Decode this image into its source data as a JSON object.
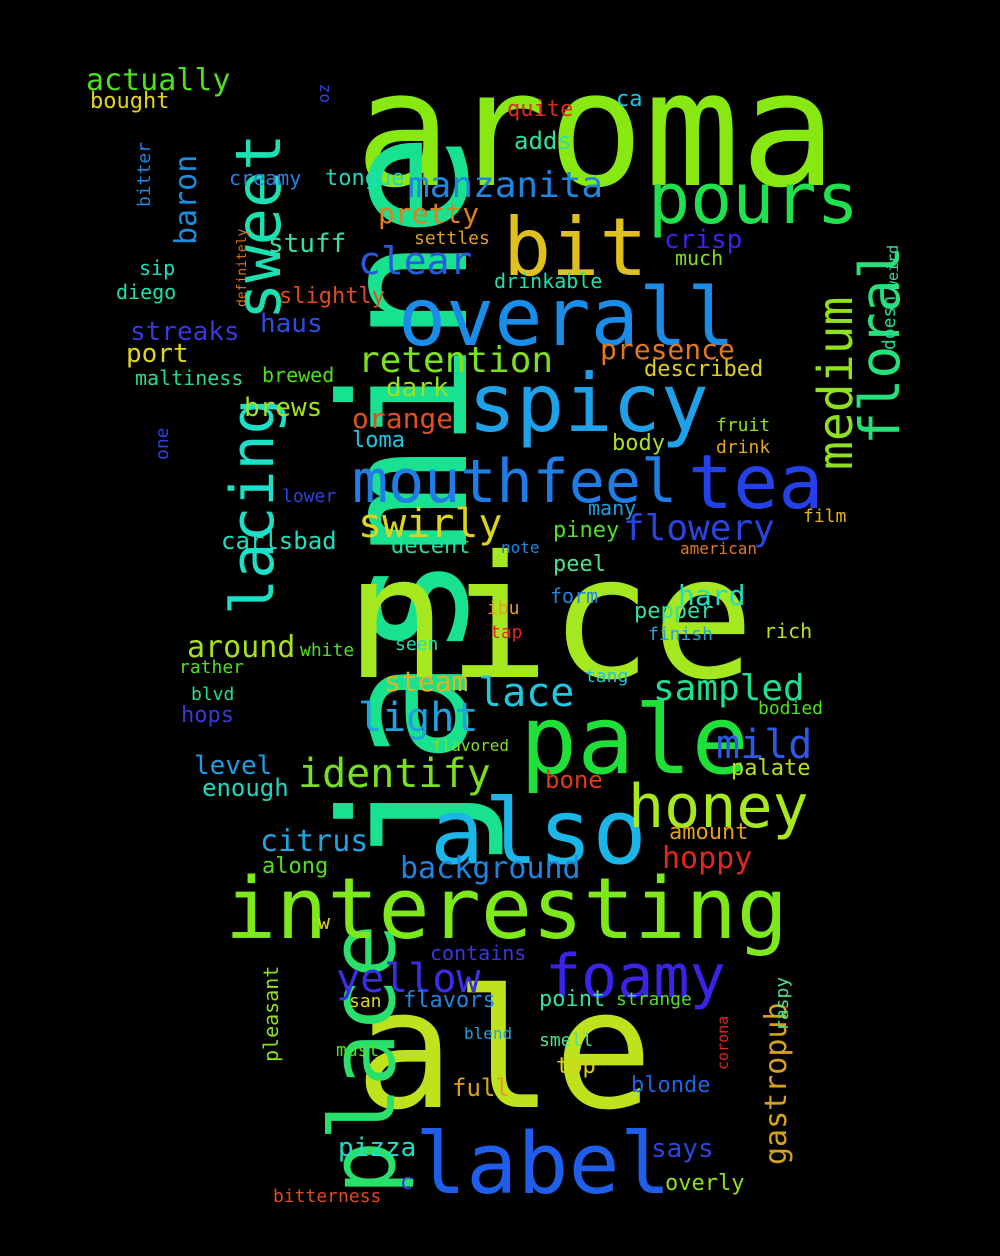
{
  "words": [
    {
      "text": "aroma",
      "color": "#88e812",
      "weight": 1.0
    },
    {
      "text": "jasmine",
      "color": "#18e28f",
      "weight": 0.98
    },
    {
      "text": "nice",
      "color": "#a6e81f",
      "weight": 0.95
    },
    {
      "text": "ale",
      "color": "#bee31c",
      "weight": 0.95
    },
    {
      "text": "pale",
      "color": "#1fe039",
      "weight": 0.6
    },
    {
      "text": "also",
      "color": "#1cb5e8",
      "weight": 0.55
    },
    {
      "text": "label",
      "color": "#1e5ee8",
      "weight": 0.55
    },
    {
      "text": "place",
      "color": "#28e06a",
      "weight": 0.55
    },
    {
      "text": "interesting",
      "color": "#7de81c",
      "weight": 0.5
    },
    {
      "text": "overall",
      "color": "#1a8de8",
      "weight": 0.5
    },
    {
      "text": "spicy",
      "color": "#1ea1e8",
      "weight": 0.5
    },
    {
      "text": "bit",
      "color": "#e0c01c",
      "weight": 0.45
    },
    {
      "text": "pours",
      "color": "#21e04e",
      "weight": 0.45
    },
    {
      "text": "sweet",
      "color": "#1ce0b0",
      "weight": 0.45
    },
    {
      "text": "lacing",
      "color": "#1ce0c7",
      "weight": 0.45
    },
    {
      "text": "tea",
      "color": "#2440e8",
      "weight": 0.45
    },
    {
      "text": "mouthfeel",
      "color": "#1f7ee6",
      "weight": 0.4
    },
    {
      "text": "honey",
      "color": "#a8e81f",
      "weight": 0.38
    },
    {
      "text": "foamy",
      "color": "#3b24e8",
      "weight": 0.38
    },
    {
      "text": "floral",
      "color": "#26e07a",
      "weight": 0.38
    },
    {
      "text": "medium",
      "color": "#8ee020",
      "weight": 0.35
    },
    {
      "text": "manzanita",
      "color": "#1e86e0",
      "weight": 0.25
    },
    {
      "text": "clear",
      "color": "#245ce0",
      "weight": 0.25
    },
    {
      "text": "retention",
      "color": "#7de01c",
      "weight": 0.25
    },
    {
      "text": "swirly",
      "color": "#dcd51c",
      "weight": 0.25
    },
    {
      "text": "flowery",
      "color": "#2a44e0",
      "weight": 0.25
    },
    {
      "text": "light",
      "color": "#1fa3e0",
      "weight": 0.28
    },
    {
      "text": "lace",
      "color": "#1fc9e0",
      "weight": 0.28
    },
    {
      "text": "identify",
      "color": "#78e01e",
      "weight": 0.28
    },
    {
      "text": "mild",
      "color": "#2c5ae6",
      "weight": 0.28
    },
    {
      "text": "yellow",
      "color": "#3b2ee8",
      "weight": 0.28
    },
    {
      "text": "sampled",
      "color": "#1ee08e",
      "weight": 0.25
    },
    {
      "text": "gastropub",
      "color": "#d6a21e",
      "weight": 0.25
    },
    {
      "text": "baron",
      "color": "#1a8fe0",
      "weight": 0.22
    },
    {
      "text": "actually",
      "color": "#4ee01c",
      "weight": 0.2
    },
    {
      "text": "pretty",
      "color": "#e07d1f",
      "weight": 0.2
    },
    {
      "text": "stuff",
      "color": "#34e0a8",
      "weight": 0.18
    },
    {
      "text": "crisp",
      "color": "#3b24e8",
      "weight": 0.18
    },
    {
      "text": "presence",
      "color": "#e0781e",
      "weight": 0.18
    },
    {
      "text": "dark",
      "color": "#9be01e",
      "weight": 0.18
    },
    {
      "text": "orange",
      "color": "#e04f1e",
      "weight": 0.18
    },
    {
      "text": "streaks",
      "color": "#3b36e0",
      "weight": 0.18
    },
    {
      "text": "port",
      "color": "#e0d51e",
      "weight": 0.18
    },
    {
      "text": "haus",
      "color": "#2c4ee0",
      "weight": 0.18
    },
    {
      "text": "brews",
      "color": "#a3e01e",
      "weight": 0.18
    },
    {
      "text": "carlsbad",
      "color": "#1ee0c0",
      "weight": 0.18
    },
    {
      "text": "around",
      "color": "#a8e01e",
      "weight": 0.22
    },
    {
      "text": "steam",
      "color": "#e0b41e",
      "weight": 0.18
    },
    {
      "text": "hard",
      "color": "#1ee0c0",
      "weight": 0.18
    },
    {
      "text": "citrus",
      "color": "#1ea5e0",
      "weight": 0.2
    },
    {
      "text": "background",
      "color": "#1e86e0",
      "weight": 0.2
    },
    {
      "text": "hoppy",
      "color": "#e0281e",
      "weight": 0.2
    },
    {
      "text": "pizza",
      "color": "#1ee0c7",
      "weight": 0.18
    },
    {
      "text": "level",
      "color": "#1e9ee0",
      "weight": 0.18
    },
    {
      "text": "enough",
      "color": "#1ed8c0",
      "weight": 0.16
    },
    {
      "text": "amount",
      "color": "#e0a01e",
      "weight": 0.15
    },
    {
      "text": "palate",
      "color": "#b5e01e",
      "weight": 0.14
    },
    {
      "text": "body",
      "color": "#a8e01e",
      "weight": 0.15
    },
    {
      "text": "peel",
      "color": "#4ee08a",
      "weight": 0.15
    },
    {
      "text": "pepper",
      "color": "#34e09f",
      "weight": 0.15
    },
    {
      "text": "bone",
      "color": "#e0391e",
      "weight": 0.15
    },
    {
      "text": "described",
      "color": "#e0d01e",
      "weight": 0.14
    },
    {
      "text": "loma",
      "color": "#1ec6e0",
      "weight": 0.14
    },
    {
      "text": "many",
      "color": "#1e9ee0",
      "weight": 0.13
    },
    {
      "text": "piney",
      "color": "#4ee02a",
      "weight": 0.14
    },
    {
      "text": "decent",
      "color": "#1ee0a0",
      "weight": 0.15
    },
    {
      "text": "adds",
      "color": "#34e09a",
      "weight": 0.15
    },
    {
      "text": "tongue",
      "color": "#1ed8c0",
      "weight": 0.14
    },
    {
      "text": "quite",
      "color": "#e0281e",
      "weight": 0.14
    },
    {
      "text": "ca",
      "color": "#1ec6e0",
      "weight": 0.14
    },
    {
      "text": "bought",
      "color": "#e0d51e",
      "weight": 0.13
    },
    {
      "text": "creamy",
      "color": "#2c7ee0",
      "weight": 0.13
    },
    {
      "text": "settles",
      "color": "#e0a01e",
      "weight": 0.12
    },
    {
      "text": "much",
      "color": "#7de01e",
      "weight": 0.13
    },
    {
      "text": "drinkable",
      "color": "#1ee0a8",
      "weight": 0.13
    },
    {
      "text": "slightly",
      "color": "#e04c1e",
      "weight": 0.14
    },
    {
      "text": "sip",
      "color": "#1ee0c0",
      "weight": 0.12
    },
    {
      "text": "diego",
      "color": "#1ee0a8",
      "weight": 0.12
    },
    {
      "text": "maltiness",
      "color": "#1ee08e",
      "weight": 0.12
    },
    {
      "text": "brewed",
      "color": "#4ee01e",
      "weight": 0.12
    },
    {
      "text": "fruit",
      "color": "#8ee01e",
      "weight": 0.12
    },
    {
      "text": "drink",
      "color": "#e0a81e",
      "weight": 0.12
    },
    {
      "text": "lower",
      "color": "#2c44e0",
      "weight": 0.11
    },
    {
      "text": "film",
      "color": "#e0b41e",
      "weight": 0.12
    },
    {
      "text": "note",
      "color": "#1e86e0",
      "weight": 0.11
    },
    {
      "text": "american",
      "color": "#e0781e",
      "weight": 0.11
    },
    {
      "text": "ibu",
      "color": "#e0a01e",
      "weight": 0.12
    },
    {
      "text": "form",
      "color": "#1e86e0",
      "weight": 0.13
    },
    {
      "text": "tap",
      "color": "#e0281e",
      "weight": 0.12
    },
    {
      "text": "finish",
      "color": "#1ea5e0",
      "weight": 0.12
    },
    {
      "text": "rich",
      "color": "#b5e01e",
      "weight": 0.13
    },
    {
      "text": "white",
      "color": "#4ee01e",
      "weight": 0.12
    },
    {
      "text": "seen",
      "color": "#1ee0b0",
      "weight": 0.12
    },
    {
      "text": "rather",
      "color": "#4ee01e",
      "weight": 0.12
    },
    {
      "text": "tang",
      "color": "#1ec6e0",
      "weight": 0.12
    },
    {
      "text": "blvd",
      "color": "#1ee08e",
      "weight": 0.12
    },
    {
      "text": "hops",
      "color": "#3b36e0",
      "weight": 0.14
    },
    {
      "text": "bodied",
      "color": "#4ee01e",
      "weight": 0.12
    },
    {
      "text": "flavored",
      "color": "#7de01e",
      "weight": 0.11
    },
    {
      "text": "along",
      "color": "#4ee01e",
      "weight": 0.14
    },
    {
      "text": "w",
      "color": "#e0d51e",
      "weight": 0.12
    },
    {
      "text": "contains",
      "color": "#3b36e0",
      "weight": 0.13
    },
    {
      "text": "flavors",
      "color": "#1e86e0",
      "weight": 0.14
    },
    {
      "text": "san",
      "color": "#e0d51e",
      "weight": 0.12
    },
    {
      "text": "point",
      "color": "#34e0a8",
      "weight": 0.14
    },
    {
      "text": "strange",
      "color": "#4ee01e",
      "weight": 0.12
    },
    {
      "text": "blend",
      "color": "#1ea5e0",
      "weight": 0.11
    },
    {
      "text": "smell",
      "color": "#4ee08a",
      "weight": 0.12
    },
    {
      "text": "must",
      "color": "#4ee01e",
      "weight": 0.12
    },
    {
      "text": "top",
      "color": "#e0d01e",
      "weight": 0.14
    },
    {
      "text": "full",
      "color": "#e0a01e",
      "weight": 0.15
    },
    {
      "text": "blonde",
      "color": "#1e66e0",
      "weight": 0.14
    },
    {
      "text": "says",
      "color": "#2c44e0",
      "weight": 0.15
    },
    {
      "text": "overly",
      "color": "#8ee01e",
      "weight": 0.14
    },
    {
      "text": "c",
      "color": "#3b36e0",
      "weight": 0.12
    },
    {
      "text": "bitterness",
      "color": "#e04c1e",
      "weight": 0.12
    },
    {
      "text": "oz",
      "color": "#2c44e0",
      "weight": 0.12
    },
    {
      "text": "bitter",
      "color": "#1e86e0",
      "weight": 0.12
    },
    {
      "text": "definitely",
      "color": "#e0781e",
      "weight": 0.1
    },
    {
      "text": "one",
      "color": "#2c44e0",
      "weight": 0.12
    },
    {
      "text": "doesn",
      "color": "#1ee08e",
      "weight": 0.12
    },
    {
      "text": "weird",
      "color": "#34e09a",
      "weight": 0.11
    },
    {
      "text": "pleasant",
      "color": "#8ee01e",
      "weight": 0.12
    },
    {
      "text": "corona",
      "color": "#e0281e",
      "weight": 0.11
    },
    {
      "text": "raspy",
      "color": "#4ee08a",
      "weight": 0.12
    }
  ]
}
